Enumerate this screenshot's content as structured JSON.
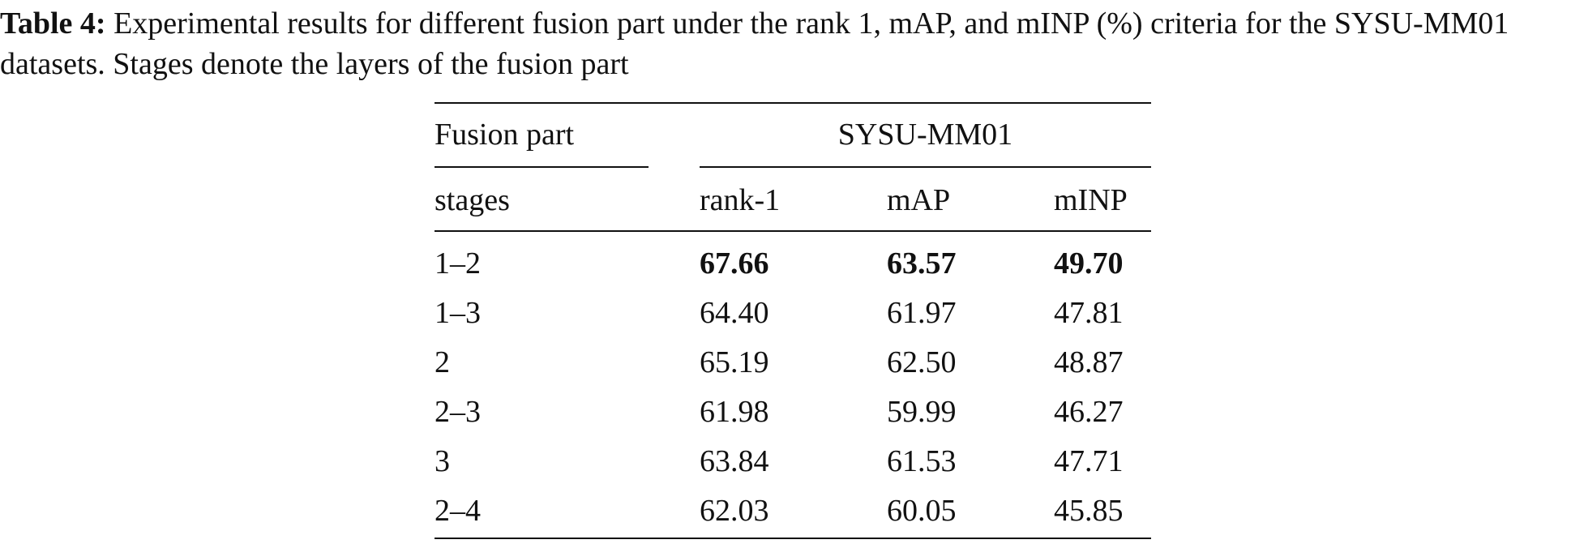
{
  "caption": {
    "label": "Table 4:",
    "text": "Experimental results for different fusion part under the rank 1, mAP, and mINP (%) criteria for the SYSU-MM01 datasets. Stages denote the layers of the fusion part"
  },
  "table": {
    "header_top": [
      "Fusion part",
      "SYSU-MM01"
    ],
    "header": [
      "stages",
      "rank-1",
      "mAP",
      "mINP"
    ],
    "rows": [
      [
        "1–2",
        "67.66",
        "63.57",
        "49.70"
      ],
      [
        "1–3",
        "64.40",
        "61.97",
        "47.81"
      ],
      [
        "2",
        "65.19",
        "62.50",
        "48.87"
      ],
      [
        "2–3",
        "61.98",
        "59.99",
        "46.27"
      ],
      [
        "3",
        "63.84",
        "61.53",
        "47.71"
      ],
      [
        "2–4",
        "62.03",
        "60.05",
        "45.85"
      ]
    ]
  }
}
